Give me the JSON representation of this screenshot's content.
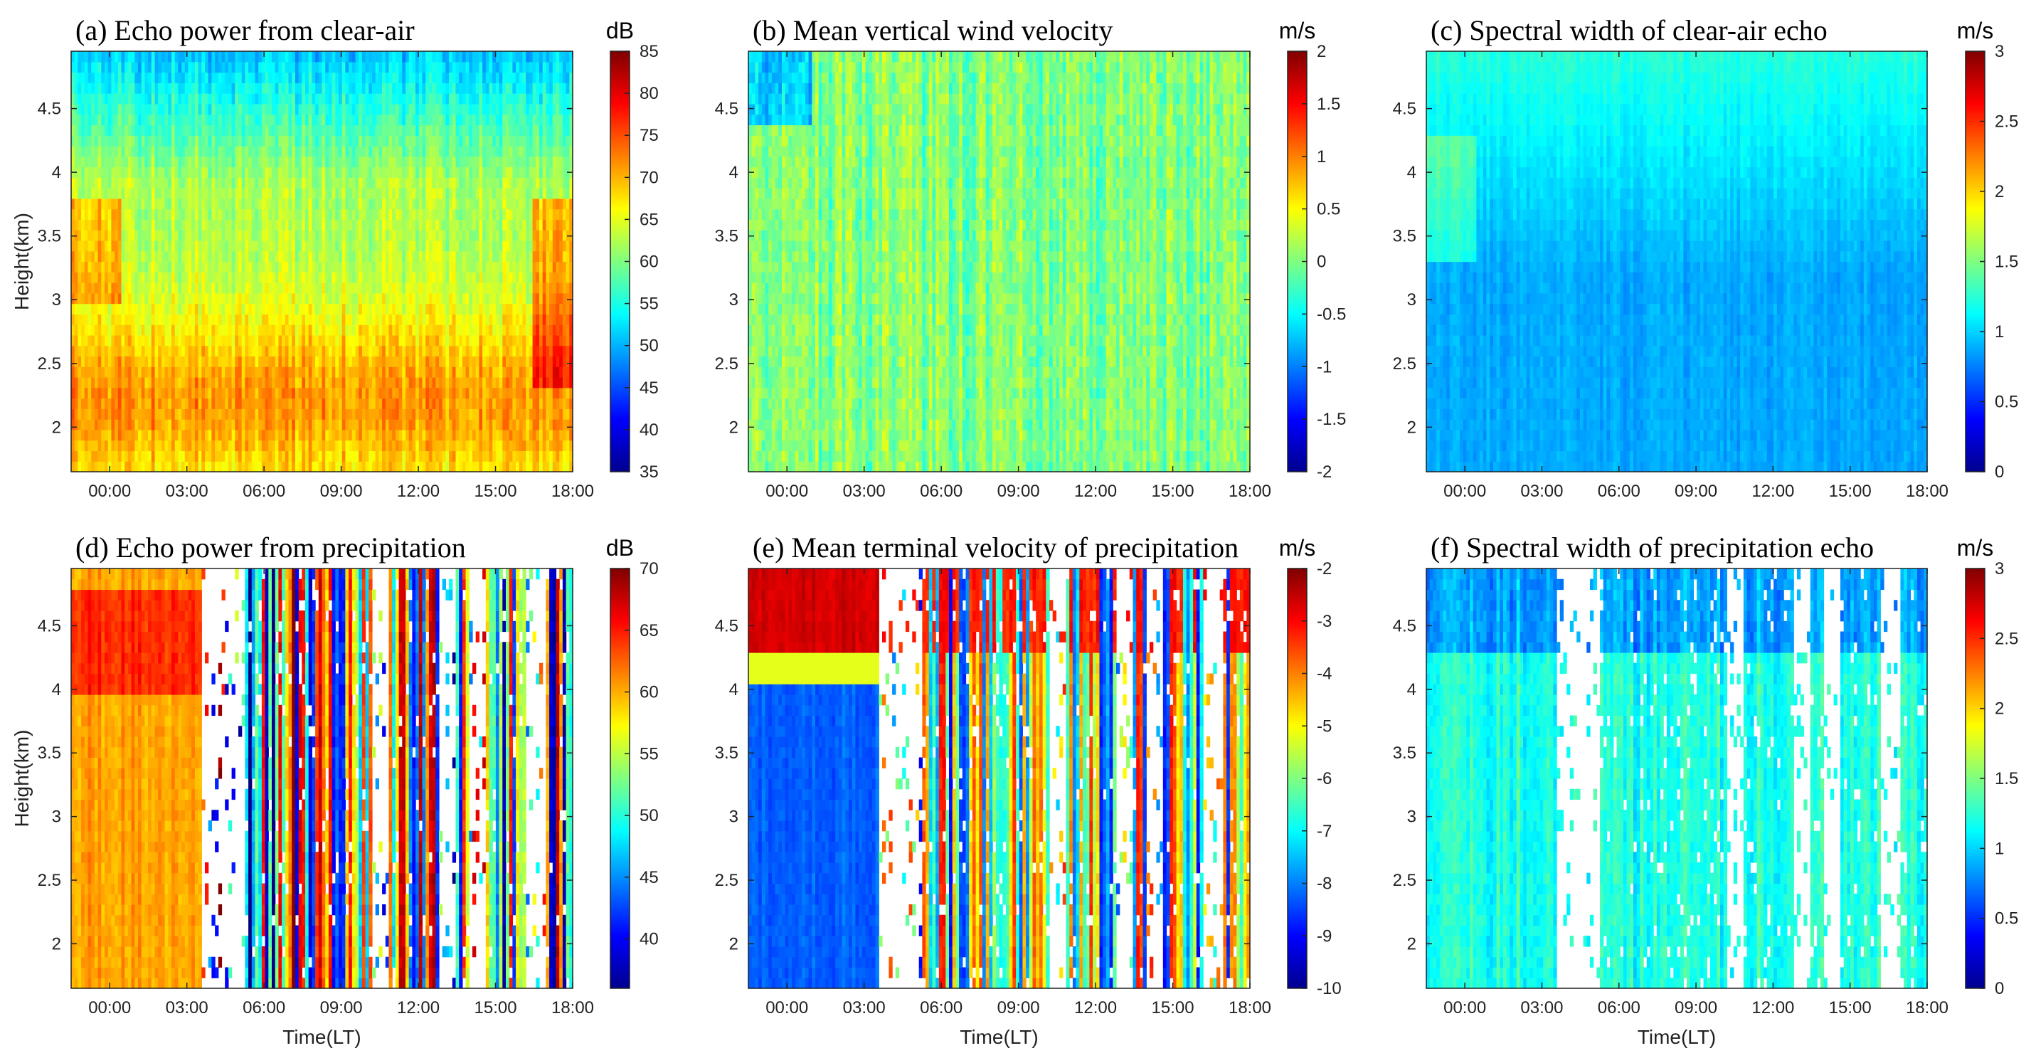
{
  "figure": {
    "x_label": "Time(LT)",
    "y_label": "Height(km)"
  },
  "chart_data": [
    {
      "id": "a",
      "type": "heatmap",
      "title": "(a) Echo power from clear-air",
      "unit": "dB",
      "clim": [
        35,
        85
      ],
      "cbar_ticks": [
        35,
        40,
        45,
        50,
        55,
        60,
        65,
        70,
        75,
        80,
        85
      ],
      "xlabel": "",
      "ylabel": "Height(km)",
      "x_ticks": [
        "00:00",
        "03:00",
        "06:00",
        "09:00",
        "12:00",
        "15:00",
        "18:00"
      ],
      "y_ticks": [
        2,
        2.5,
        3,
        3.5,
        4,
        4.5
      ],
      "xlim_hours": [
        -1.5,
        18
      ],
      "ylim_km": [
        1.65,
        4.95
      ],
      "gaps": []
    },
    {
      "id": "b",
      "type": "heatmap",
      "title": "(b) Mean vertical wind velocity",
      "unit": "m/s",
      "clim": [
        -2,
        2
      ],
      "cbar_ticks": [
        -2,
        -1.5,
        -1,
        -0.5,
        0,
        0.5,
        1,
        1.5,
        2
      ],
      "xlabel": "",
      "ylabel": "",
      "x_ticks": [
        "00:00",
        "03:00",
        "06:00",
        "09:00",
        "12:00",
        "15:00",
        "18:00"
      ],
      "y_ticks": [
        2,
        2.5,
        3,
        3.5,
        4,
        4.5
      ],
      "xlim_hours": [
        -1.5,
        18
      ],
      "ylim_km": [
        1.65,
        4.95
      ],
      "gaps": []
    },
    {
      "id": "c",
      "type": "heatmap",
      "title": "(c) Spectral width of clear-air echo",
      "unit": "m/s",
      "clim": [
        0,
        3
      ],
      "cbar_ticks": [
        0,
        0.5,
        1,
        1.5,
        2,
        2.5,
        3
      ],
      "xlabel": "",
      "ylabel": "",
      "x_ticks": [
        "00:00",
        "03:00",
        "06:00",
        "09:00",
        "12:00",
        "15:00",
        "18:00"
      ],
      "y_ticks": [
        2,
        2.5,
        3,
        3.5,
        4,
        4.5
      ],
      "xlim_hours": [
        -1.5,
        18
      ],
      "ylim_km": [
        1.65,
        4.95
      ],
      "gaps": []
    },
    {
      "id": "d",
      "type": "heatmap",
      "title": "(d) Echo power from precipitation",
      "unit": "dB",
      "clim": [
        36,
        70
      ],
      "cbar_ticks": [
        40,
        45,
        50,
        55,
        60,
        65,
        70
      ],
      "xlabel": "Time(LT)",
      "ylabel": "Height(km)",
      "x_ticks": [
        "00:00",
        "03:00",
        "06:00",
        "09:00",
        "12:00",
        "15:00",
        "18:00"
      ],
      "y_ticks": [
        2,
        2.5,
        3,
        3.5,
        4,
        4.5
      ],
      "xlim_hours": [
        -1.5,
        18
      ],
      "ylim_km": [
        1.65,
        4.95
      ],
      "gaps": [
        [
          3.6,
          5.2
        ],
        [
          10.2,
          10.9
        ],
        [
          12.8,
          13.5
        ],
        [
          14.0,
          14.6
        ],
        [
          16.2,
          16.9
        ]
      ]
    },
    {
      "id": "e",
      "type": "heatmap",
      "title": "(e) Mean terminal velocity of precipitation",
      "unit": "m/s",
      "clim": [
        -10,
        -2
      ],
      "cbar_ticks": [
        -10,
        -9,
        -8,
        -7,
        -6,
        -5,
        -4,
        -3,
        -2
      ],
      "xlabel": "Time(LT)",
      "ylabel": "",
      "x_ticks": [
        "00:00",
        "03:00",
        "06:00",
        "09:00",
        "12:00",
        "15:00",
        "18:00"
      ],
      "y_ticks": [
        2,
        2.5,
        3,
        3.5,
        4,
        4.5
      ],
      "xlim_hours": [
        -1.5,
        18
      ],
      "ylim_km": [
        1.65,
        4.95
      ],
      "gaps": [
        [
          3.6,
          5.2
        ],
        [
          10.2,
          10.9
        ],
        [
          12.8,
          13.5
        ],
        [
          14.0,
          14.6
        ],
        [
          16.2,
          16.9
        ]
      ]
    },
    {
      "id": "f",
      "type": "heatmap",
      "title": "(f) Spectral width of precipitation echo",
      "unit": "m/s",
      "clim": [
        0,
        3
      ],
      "cbar_ticks": [
        0,
        0.5,
        1,
        1.5,
        2,
        2.5,
        3
      ],
      "xlabel": "Time(LT)",
      "ylabel": "",
      "x_ticks": [
        "00:00",
        "03:00",
        "06:00",
        "09:00",
        "12:00",
        "15:00",
        "18:00"
      ],
      "y_ticks": [
        2,
        2.5,
        3,
        3.5,
        4,
        4.5
      ],
      "xlim_hours": [
        -1.5,
        18
      ],
      "ylim_km": [
        1.65,
        4.95
      ],
      "gaps": [
        [
          3.6,
          5.2
        ],
        [
          10.2,
          10.9
        ],
        [
          12.8,
          13.5
        ],
        [
          14.0,
          14.6
        ],
        [
          16.2,
          16.9
        ]
      ]
    }
  ]
}
